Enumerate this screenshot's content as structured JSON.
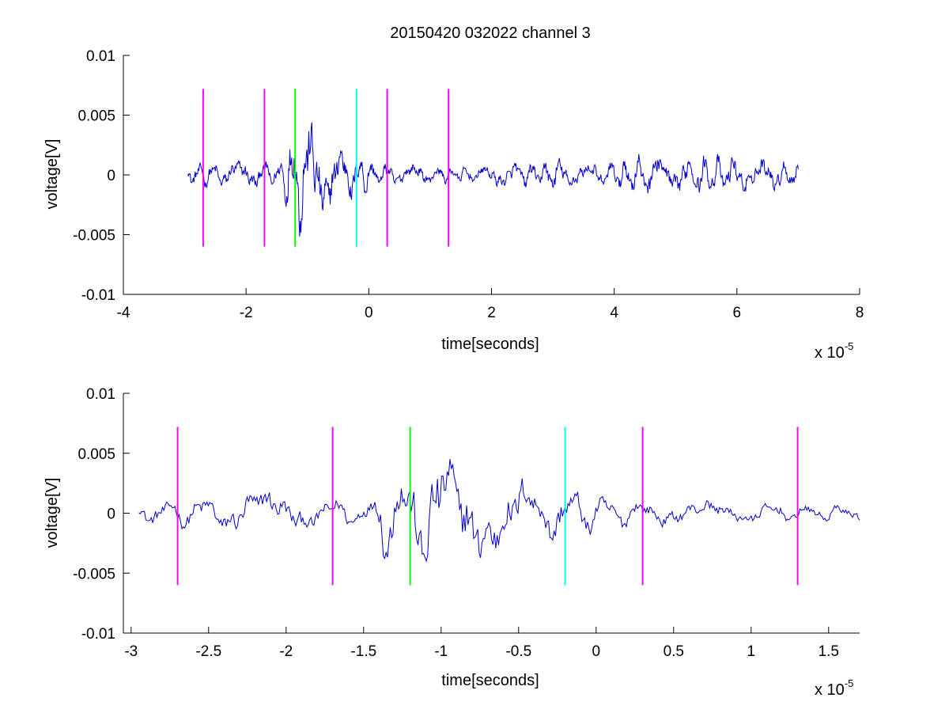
{
  "figure": {
    "title": "20150420 032022 channel 3"
  },
  "chart_data": [
    {
      "type": "line",
      "title": "20150420 032022 channel 3",
      "xlabel": "time[seconds]",
      "ylabel": "voltage[V]",
      "x_exponent_label": "x 10",
      "x_exponent": "-5",
      "xlim": [
        -4e-05,
        8e-05
      ],
      "ylim": [
        -0.01,
        0.01
      ],
      "x_ticks": [
        -4e-05,
        -2e-05,
        0,
        2e-05,
        4e-05,
        6e-05,
        8e-05
      ],
      "x_tick_labels": [
        "-4",
        "-2",
        "0",
        "2",
        "4",
        "6",
        "8"
      ],
      "y_ticks": [
        -0.01,
        -0.005,
        0,
        0.005,
        0.01
      ],
      "y_tick_labels": [
        "-0.01",
        "-0.005",
        "0",
        "0.005",
        "0.01"
      ],
      "grid": false,
      "series": [
        {
          "color": "#0000cc",
          "x_start": -2.95e-05,
          "x_end": 7e-05,
          "points": 1000,
          "amplitude_profile": [
            [
              -2.95e-05,
              0.0011
            ],
            [
              -1.45e-05,
              0.0013
            ],
            [
              -1.3e-05,
              0.0036
            ],
            [
              -1.1e-05,
              0.0055
            ],
            [
              -6e-06,
              0.0032
            ],
            [
              -2e-06,
              0.0022
            ],
            [
              2e-06,
              0.0011
            ],
            [
              1.5e-05,
              0.0007
            ],
            [
              2.5e-05,
              0.0012
            ],
            [
              3e-05,
              0.0016
            ],
            [
              3.5e-05,
              0.0009
            ],
            [
              4.3e-05,
              0.002
            ],
            [
              5e-05,
              0.0018
            ],
            [
              6e-05,
              0.0017
            ],
            [
              7e-05,
              0.0012
            ]
          ]
        }
      ],
      "markers": [
        {
          "x": -2.7e-05,
          "y_min": -0.006,
          "y_max": 0.0072,
          "color": "#ff00ff"
        },
        {
          "x": -1.7e-05,
          "y_min": -0.006,
          "y_max": 0.0072,
          "color": "#ff00ff"
        },
        {
          "x": -1.2e-05,
          "y_min": -0.006,
          "y_max": 0.0072,
          "color": "#00ff00"
        },
        {
          "x": -2e-06,
          "y_min": -0.006,
          "y_max": 0.0072,
          "color": "#00ffff"
        },
        {
          "x": 3e-06,
          "y_min": -0.006,
          "y_max": 0.0072,
          "color": "#ff00ff"
        },
        {
          "x": 1.3e-05,
          "y_min": -0.006,
          "y_max": 0.0072,
          "color": "#ff00ff"
        }
      ]
    },
    {
      "type": "line",
      "xlabel": "time[seconds]",
      "ylabel": "voltage[V]",
      "x_exponent_label": "x 10",
      "x_exponent": "-5",
      "xlim": [
        -3.05e-05,
        1.7e-05
      ],
      "ylim": [
        -0.01,
        0.01
      ],
      "x_ticks": [
        -3e-05,
        -2.5e-05,
        -2e-05,
        -1.5e-05,
        -1e-05,
        -5e-06,
        0,
        5e-06,
        1e-05,
        1.5e-05
      ],
      "x_tick_labels": [
        "-3",
        "-2.5",
        "-2",
        "-1.5",
        "-1",
        "-0.5",
        "0",
        "0.5",
        "1",
        "1.5"
      ],
      "y_ticks": [
        -0.01,
        -0.005,
        0,
        0.005,
        0.01
      ],
      "y_tick_labels": [
        "-0.01",
        "-0.005",
        "0",
        "0.005",
        "0.01"
      ],
      "grid": false,
      "series": [
        {
          "color": "#0000cc",
          "x_start": -2.95e-05,
          "x_end": 1.7e-05,
          "points": 520,
          "amplitude_profile": [
            [
              -2.95e-05,
              0.0011
            ],
            [
              -2.5e-05,
              0.0016
            ],
            [
              -2.2e-05,
              0.0022
            ],
            [
              -1.8e-05,
              0.0014
            ],
            [
              -1.45e-05,
              0.0013
            ],
            [
              -1.35e-05,
              0.005
            ],
            [
              -1.2e-05,
              0.004
            ],
            [
              -1.1e-05,
              0.006
            ],
            [
              -8e-06,
              0.0045
            ],
            [
              -5e-06,
              0.0032
            ],
            [
              -2e-06,
              0.0026
            ],
            [
              0.0,
              0.0018
            ],
            [
              3e-06,
              0.0011
            ],
            [
              1e-05,
              0.001
            ],
            [
              1.7e-05,
              0.0007
            ]
          ]
        }
      ],
      "markers": [
        {
          "x": -2.7e-05,
          "y_min": -0.006,
          "y_max": 0.0072,
          "color": "#ff00ff"
        },
        {
          "x": -1.7e-05,
          "y_min": -0.006,
          "y_max": 0.0072,
          "color": "#ff00ff"
        },
        {
          "x": -1.2e-05,
          "y_min": -0.006,
          "y_max": 0.0072,
          "color": "#00ff00"
        },
        {
          "x": -2e-06,
          "y_min": -0.006,
          "y_max": 0.0072,
          "color": "#00ffff"
        },
        {
          "x": 3e-06,
          "y_min": -0.006,
          "y_max": 0.0072,
          "color": "#ff00ff"
        },
        {
          "x": 1.3e-05,
          "y_min": -0.006,
          "y_max": 0.0072,
          "color": "#ff00ff"
        }
      ]
    }
  ]
}
